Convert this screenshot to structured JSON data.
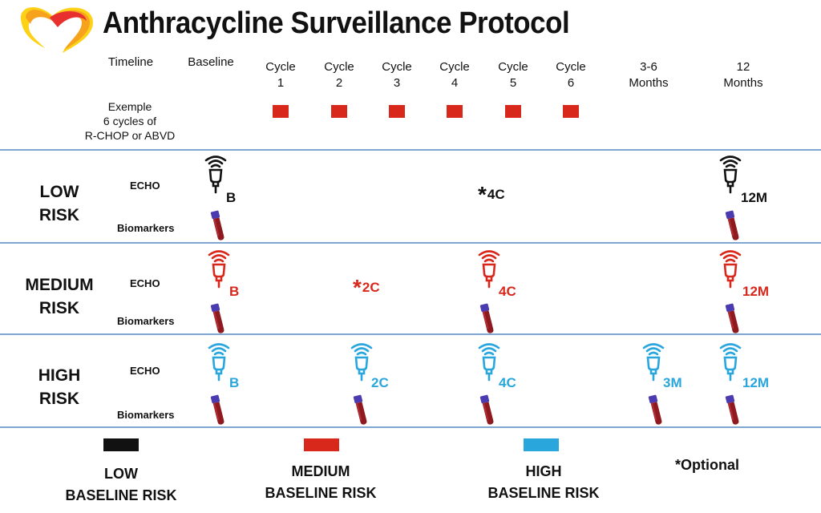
{
  "title": "Anthracycline Surveillance Protocol",
  "logo": {
    "name": "heart-logo",
    "colors": [
      "#e8312f",
      "#f6a21c",
      "#fcd116"
    ]
  },
  "colors": {
    "low": "#111111",
    "medium": "#d8281c",
    "high": "#29a6dc",
    "divider": "#7ea6d0"
  },
  "header": {
    "timeline": "Timeline",
    "baseline": "Baseline",
    "cols": [
      {
        "line1": "Cycle",
        "line2": "1"
      },
      {
        "line1": "Cycle",
        "line2": "2"
      },
      {
        "line1": "Cycle",
        "line2": "3"
      },
      {
        "line1": "Cycle",
        "line2": "4"
      },
      {
        "line1": "Cycle",
        "line2": "5"
      },
      {
        "line1": "Cycle",
        "line2": "6"
      },
      {
        "line1": "3-6",
        "line2": "Months"
      },
      {
        "line1": "12",
        "line2": "Months"
      }
    ]
  },
  "example": {
    "line1": "Exemple",
    "line2": "6 cycles of",
    "line3": "R-CHOP or ABVD"
  },
  "rows": {
    "low": {
      "line1": "LOW",
      "line2": "RISK",
      "echo": "ECHO",
      "biomarkers": "Biomarkers",
      "marks": {
        "baseline": "B",
        "c4": "4C",
        "m12": "12M"
      }
    },
    "medium": {
      "line1": "MEDIUM",
      "line2": "RISK",
      "echo": "ECHO",
      "biomarkers": "Biomarkers",
      "marks": {
        "baseline": "B",
        "c2": "2C",
        "c4": "4C",
        "m12": "12M"
      }
    },
    "high": {
      "line1": "HIGH",
      "line2": "RISK",
      "echo": "ECHO",
      "biomarkers": "Biomarkers",
      "marks": {
        "baseline": "B",
        "c2": "2C",
        "c4": "4C",
        "m3": "3M",
        "m12": "12M"
      }
    }
  },
  "icons": {
    "echo": "ultrasound-probe-icon",
    "blood": "blood-tube-icon"
  },
  "legend": {
    "low": {
      "line1": "LOW",
      "line2": "BASELINE RISK"
    },
    "medium": {
      "line1": "MEDIUM",
      "line2": "BASELINE RISK"
    },
    "high": {
      "line1": "HIGH",
      "line2": "BASELINE RISK"
    },
    "optional": "*Optional"
  }
}
